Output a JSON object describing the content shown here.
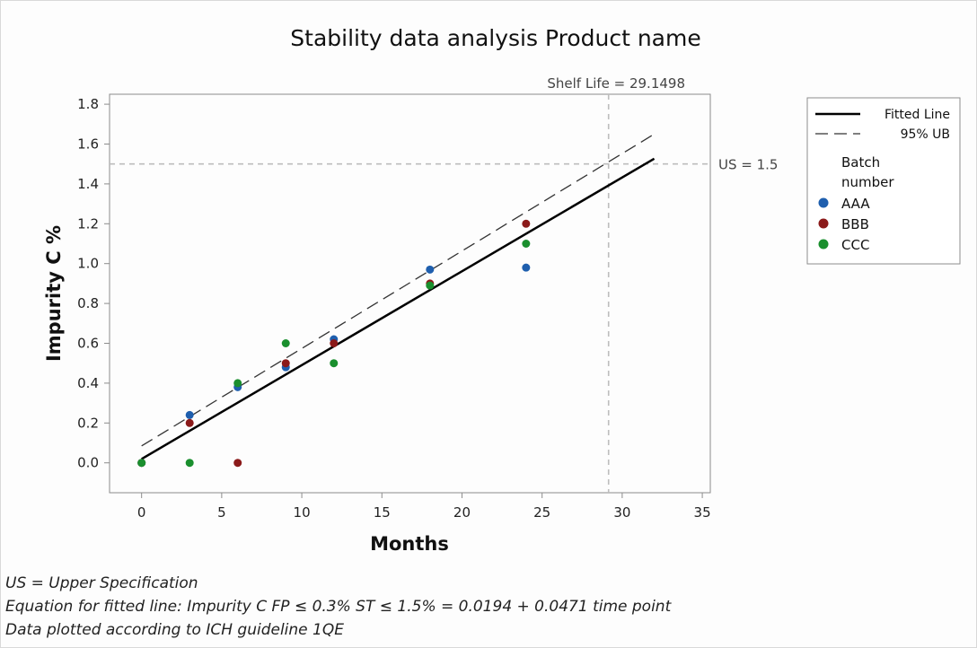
{
  "chart_data": {
    "type": "scatter",
    "title": "Stability data analysis Product name",
    "xlabel": "Months",
    "ylabel": "Impurity C %",
    "xlim": [
      -2,
      35.5
    ],
    "ylim": [
      -0.15,
      1.85
    ],
    "xticks": [
      "0",
      "5",
      "10",
      "15",
      "20",
      "25",
      "30",
      "35"
    ],
    "yticks": [
      "0.0",
      "0.2",
      "0.4",
      "0.6",
      "0.8",
      "1.0",
      "1.2",
      "1.4",
      "1.6",
      "1.8"
    ],
    "grid": false,
    "legend_position": "right",
    "fitted_line": {
      "name": "Fitted Line",
      "intercept": 0.0194,
      "slope": 0.0471,
      "x_range": [
        0,
        32
      ]
    },
    "upper_bound": {
      "name": "95% UB",
      "points": [
        [
          0,
          0.085
        ],
        [
          32,
          1.65
        ]
      ]
    },
    "spec_limit": {
      "label": "US = 1.5",
      "value": 1.5
    },
    "shelf_life": {
      "label": "Shelf Life = 29.1498",
      "value": 29.1498
    },
    "legend_title": "Batch\nnumber",
    "series": [
      {
        "name": "AAA",
        "color": "#1f5fae",
        "points": [
          [
            0,
            0.0
          ],
          [
            3,
            0.24
          ],
          [
            6,
            0.38
          ],
          [
            9,
            0.48
          ],
          [
            12,
            0.62
          ],
          [
            18,
            0.97
          ],
          [
            24,
            0.98
          ]
        ]
      },
      {
        "name": "BBB",
        "color": "#8b1a1a",
        "points": [
          [
            0,
            0.0
          ],
          [
            3,
            0.2
          ],
          [
            6,
            0.0
          ],
          [
            9,
            0.5
          ],
          [
            12,
            0.6
          ],
          [
            18,
            0.9
          ],
          [
            24,
            1.2
          ]
        ]
      },
      {
        "name": "CCC",
        "color": "#1a8f2e",
        "points": [
          [
            0,
            0.0
          ],
          [
            3,
            0.0
          ],
          [
            6,
            0.4
          ],
          [
            9,
            0.6
          ],
          [
            12,
            0.5
          ],
          [
            18,
            0.89
          ],
          [
            24,
            1.1
          ]
        ]
      }
    ]
  },
  "footnotes": [
    "US = Upper Specification",
    "Equation for fitted line: Impurity C FP ≤ 0.3% ST ≤ 1.5% = 0.0194 + 0.0471 time point",
    "Data plotted according to ICH guideline 1QE"
  ]
}
